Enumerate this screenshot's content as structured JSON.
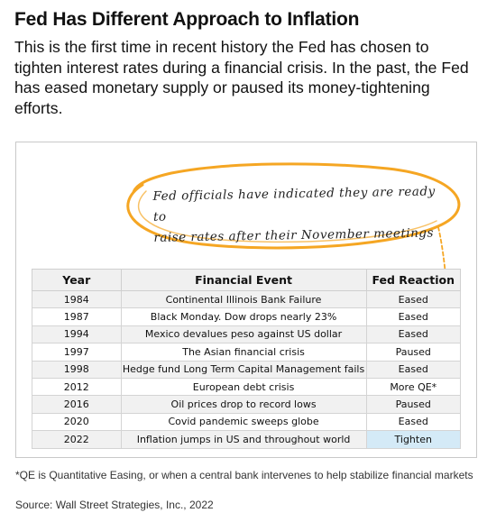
{
  "title": "Fed Has Different Approach to Inflation",
  "subtitle": "This is the first time in recent history the Fed has chosen to tighten interest rates during a financial crisis. In the past, the Fed has eased monetary supply or paused its money-tightening efforts.",
  "annotation": {
    "line1": "Fed officials have indicated they are ready to",
    "line2": "raise rates after their November meetings",
    "color": "#f5a623"
  },
  "table": {
    "headers": [
      "Year",
      "Financial Event",
      "Fed Reaction"
    ],
    "rows": [
      [
        "1984",
        "Continental Illinois Bank Failure",
        "Eased"
      ],
      [
        "1987",
        "Black Monday. Dow drops nearly 23%",
        "Eased"
      ],
      [
        "1994",
        "Mexico devalues peso against US dollar",
        "Eased"
      ],
      [
        "1997",
        "The Asian financial crisis",
        "Paused"
      ],
      [
        "1998",
        "Hedge fund Long Term Capital Management fails",
        "Eased"
      ],
      [
        "2012",
        "European debt crisis",
        "More QE*"
      ],
      [
        "2016",
        "Oil prices drop to record lows",
        "Paused"
      ],
      [
        "2020",
        "Covid pandemic sweeps globe",
        "Eased"
      ],
      [
        "2022",
        "Inflation jumps in US and throughout world",
        "Tighten"
      ]
    ],
    "highlight_color": "#d4eaf7"
  },
  "footnote": "*QE is Quantitative Easing, or when a central bank intervenes to help stabilize financial markets",
  "source": "Source: Wall Street Strategies, Inc., 2022"
}
